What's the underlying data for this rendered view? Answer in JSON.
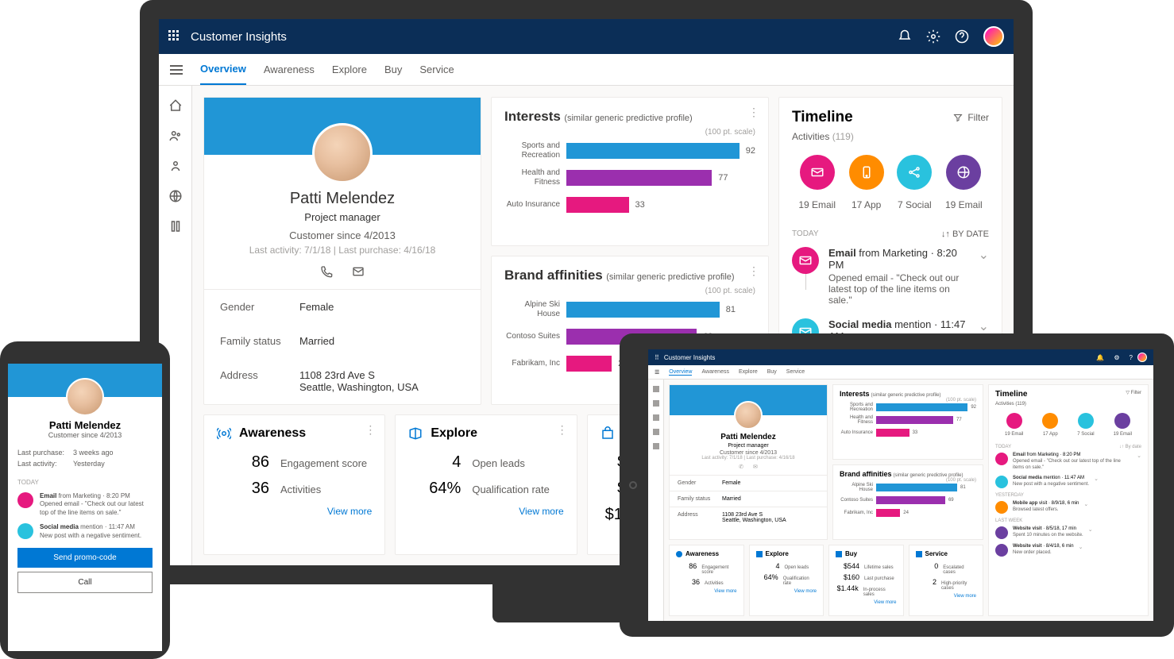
{
  "app_title": "Customer Insights",
  "tabs": [
    "Overview",
    "Awareness",
    "Explore",
    "Buy",
    "Service"
  ],
  "active_tab": 0,
  "profile": {
    "name": "Patti Melendez",
    "role": "Project manager",
    "since": "Customer since 4/2013",
    "activity": "Last activity: 7/1/18  |  Last purchase: 4/16/18",
    "details": {
      "gender_label": "Gender",
      "gender": "Female",
      "family_label": "Family status",
      "family": "Married",
      "address_label": "Address",
      "address1": "1108 23rd Ave S",
      "address2": "Seattle, Washington, USA"
    }
  },
  "interests": {
    "title": "Interests",
    "subtitle": "(similar generic predictive profile)",
    "scale_label": "(100 pt. scale)",
    "max": 100,
    "bars": [
      {
        "label": "Sports and Recreation",
        "value": 92,
        "color": "#2196d6"
      },
      {
        "label": "Health and Fitness",
        "value": 77,
        "color": "#9b2fae"
      },
      {
        "label": "Auto Insurance",
        "value": 33,
        "color": "#e6197f"
      }
    ]
  },
  "brands": {
    "title": "Brand affinities",
    "subtitle": "(similar generic predictive profile)",
    "scale_label": "(100 pt. scale)",
    "max": 100,
    "bars": [
      {
        "label": "Alpine Ski House",
        "value": 81,
        "color": "#2196d6"
      },
      {
        "label": "Contoso Suites",
        "value": 69,
        "color": "#9b2fae"
      },
      {
        "label": "Fabrikam, Inc",
        "value": 24,
        "color": "#e6197f"
      }
    ]
  },
  "timeline": {
    "title": "Timeline",
    "filter_label": "Filter",
    "activities_label": "Activities",
    "activities_count": "(119)",
    "icons": [
      {
        "label": "19 Email",
        "color": "#e6197f",
        "type": "email"
      },
      {
        "label": "17 App",
        "color": "#ff8c00",
        "type": "phone"
      },
      {
        "label": "7 Social",
        "color": "#29c2de",
        "type": "social"
      },
      {
        "label": "19 Email",
        "color": "#6b3fa0",
        "type": "globe"
      }
    ],
    "today_label": "TODAY",
    "sort_label": "By date",
    "items": [
      {
        "color": "#e6197f",
        "title_pre": "Email",
        "title_mid": " from Marketing · ",
        "time": "8:20 PM",
        "desc": "Opened  email - \"Check out our latest top of the line items on sale.\""
      },
      {
        "color": "#29c2de",
        "title_pre": "Social media",
        "title_mid": " mention · ",
        "time": "11:47 AM",
        "desc": "New post with a negative sentiment."
      }
    ]
  },
  "metrics": {
    "awareness": {
      "title": "Awareness",
      "color": "#0078d4",
      "rows": [
        {
          "num": "86",
          "label": "Engagement score"
        },
        {
          "num": "36",
          "label": "Activities"
        }
      ]
    },
    "explore": {
      "title": "Explore",
      "color": "#0078d4",
      "rows": [
        {
          "num": "4",
          "label": "Open leads"
        },
        {
          "num": "64%",
          "label": "Qualification rate"
        }
      ]
    },
    "buy": {
      "title": "Buy",
      "color": "#0078d4",
      "rows": [
        {
          "num": "$544",
          "label": "Lifetime sales"
        },
        {
          "num": "$160",
          "label": "Last purchase"
        },
        {
          "num": "$1.44k",
          "label": "In-process sales"
        }
      ]
    },
    "service": {
      "title": "Service",
      "color": "#0078d4",
      "rows": [
        {
          "num": "0",
          "label": "Escalated cases"
        },
        {
          "num": "2",
          "label": "High-priority cases"
        }
      ]
    },
    "view_more": "View more"
  },
  "phone": {
    "name": "Patti Melendez",
    "since": "Customer since 4/2013",
    "rows": [
      {
        "label": "Last purchase:",
        "val": "3 weeks ago"
      },
      {
        "label": "Last activity:",
        "val": "Yesterday"
      }
    ],
    "today_label": "TODAY",
    "items": [
      {
        "color": "#e6197f",
        "title": "Email",
        "mid": " from Marketing · ",
        "time": "8:20 PM",
        "desc": "Opened email - \"Check out our latest top of the line items on sale.\""
      },
      {
        "color": "#29c2de",
        "title": "Social media",
        "mid": " mention · ",
        "time": "11:47 AM",
        "desc": "New post with a negative sentiment."
      }
    ],
    "btn_primary": "Send promo-code",
    "btn_secondary": "Call"
  },
  "tablet": {
    "timeline_extra": {
      "yesterday_label": "YESTERDAY",
      "yesterday_items": [
        {
          "color": "#ff8c00",
          "title": "Mobile app",
          "mid": " visit · ",
          "time": "8/9/18, 6 min",
          "desc": "Browsed latest offers."
        }
      ],
      "lastweek_label": "LAST WEEK",
      "lastweek_items": [
        {
          "color": "#6b3fa0",
          "title": "Website visit",
          "mid": " · ",
          "time": "8/5/18, 17 min",
          "desc": "Spent 10 minutes on the website."
        },
        {
          "color": "#6b3fa0",
          "title": "Website visit",
          "mid": " · ",
          "time": "8/4/18, 6 min",
          "desc": "New order placed."
        }
      ]
    }
  },
  "colors": {
    "header_bg": "#0b2e57",
    "primary": "#0078d4",
    "hero": "#2196d6",
    "pink": "#e6197f",
    "purple": "#9b2fae",
    "orange": "#ff8c00",
    "cyan": "#29c2de",
    "violet": "#6b3fa0"
  }
}
